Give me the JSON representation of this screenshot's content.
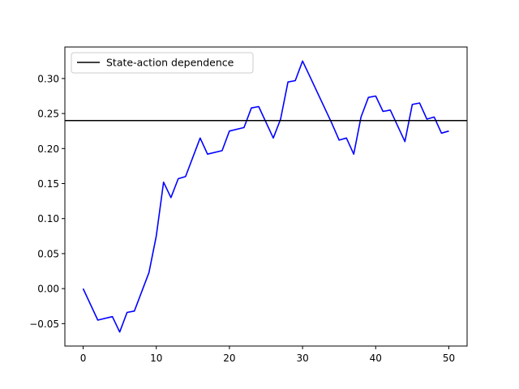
{
  "chart_data": {
    "type": "line",
    "title": "",
    "xlabel": "",
    "ylabel": "",
    "xlim": [
      -2.5,
      52.5
    ],
    "ylim": [
      -0.082,
      0.345
    ],
    "xticks": [
      0,
      10,
      20,
      30,
      40,
      50
    ],
    "xtick_labels": [
      "0",
      "10",
      "20",
      "30",
      "40",
      "50"
    ],
    "yticks": [
      -0.05,
      0.0,
      0.05,
      0.1,
      0.15,
      0.2,
      0.25,
      0.3
    ],
    "ytick_labels": [
      "−0.05",
      "0.00",
      "0.05",
      "0.10",
      "0.15",
      "0.20",
      "0.25",
      "0.30"
    ],
    "grid": false,
    "legend": {
      "position": "top-left",
      "entries": [
        "State-action dependence"
      ]
    },
    "series": [
      {
        "color": "#0000ff",
        "x": [
          0,
          2,
          4,
          5,
          6,
          7,
          9,
          10,
          11,
          12,
          13,
          14,
          16,
          17,
          19,
          20,
          22,
          23,
          24,
          26,
          27,
          28,
          29,
          30,
          31,
          34,
          35,
          36,
          37,
          38,
          39,
          40,
          41,
          42,
          44,
          45,
          46,
          47,
          48,
          49,
          50
        ],
        "y": [
          0.0,
          -0.045,
          -0.04,
          -0.062,
          -0.034,
          -0.032,
          0.023,
          0.075,
          0.152,
          0.13,
          0.157,
          0.16,
          0.215,
          0.192,
          0.197,
          0.225,
          0.23,
          0.258,
          0.26,
          0.215,
          0.242,
          0.295,
          0.297,
          0.325,
          0.303,
          0.236,
          0.212,
          0.215,
          0.192,
          0.245,
          0.273,
          0.275,
          0.253,
          0.255,
          0.21,
          0.263,
          0.265,
          0.242,
          0.245,
          0.222,
          0.225
        ]
      },
      {
        "name": "State-action dependence",
        "kind": "hline",
        "color": "#000000",
        "y": 0.24
      }
    ]
  }
}
